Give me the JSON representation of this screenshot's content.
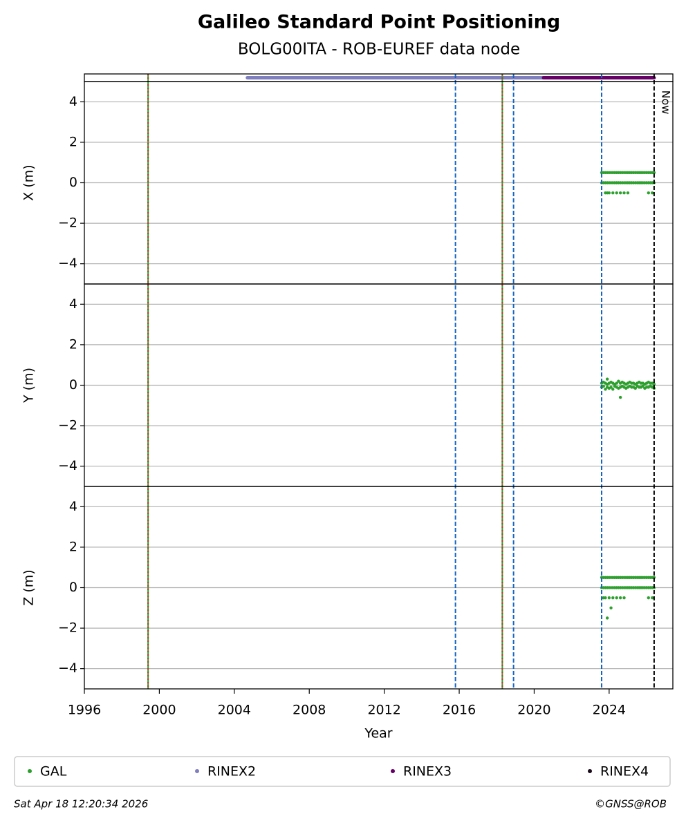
{
  "chart_data": [
    {
      "type": "timeline",
      "title": "Galileo Standard Point Positioning",
      "subtitle": "BOLG00ITA - ROB-EUREF data node",
      "xlim": [
        1996,
        2027.4
      ],
      "series": [
        {
          "name": "RINEX2",
          "color": "#7f7fbf",
          "values": [
            [
              2004.7,
              2020.5
            ]
          ]
        },
        {
          "name": "RINEX3",
          "color": "#660066",
          "values": [
            [
              2020.5,
              2026.4
            ]
          ]
        },
        {
          "name": "RINEX4",
          "color": "#1a0a1a",
          "values": []
        }
      ],
      "events": [
        {
          "value": 1999.4,
          "colors": [
            "#2ca02c",
            "#d62728"
          ]
        },
        {
          "value": 2018.3,
          "colors": [
            "#2ca02c",
            "#d62728"
          ]
        },
        {
          "value": 2015.8,
          "colors": [
            "#1565c0"
          ]
        },
        {
          "value": 2018.9,
          "colors": [
            "#1565c0"
          ]
        },
        {
          "value": 2023.6,
          "colors": [
            "#1565c0"
          ]
        }
      ],
      "annotations": [
        {
          "value": 2026.4,
          "label": "Now",
          "color": "#000000"
        }
      ],
      "legend": "bottom"
    },
    {
      "type": "scatter",
      "ylabel": "X (m)",
      "xlim": [
        1996,
        2027.4
      ],
      "ylim": [
        -5,
        5
      ],
      "yticks": [
        {
          "value": -4,
          "label": "−4"
        },
        {
          "value": -2,
          "label": "−2"
        },
        0,
        2,
        4
      ],
      "grid": true,
      "series": [
        {
          "name": "GAL",
          "color": "#2ca02c",
          "x": [
            2023.6,
            2023.7,
            2023.8,
            2023.9,
            2024.0,
            2024.1,
            2024.2,
            2024.3,
            2024.4,
            2024.5,
            2024.6,
            2024.7,
            2024.8,
            2024.9,
            2025.0,
            2025.1,
            2025.2,
            2025.3,
            2025.4,
            2025.5,
            2025.6,
            2025.7,
            2025.8,
            2025.9,
            2026.0,
            2026.1,
            2026.2,
            2026.3,
            2026.4,
            2023.6,
            2023.7,
            2023.8,
            2023.9,
            2024.0,
            2024.1,
            2024.2,
            2024.3,
            2024.4,
            2024.5,
            2024.6,
            2024.7,
            2024.8,
            2024.9,
            2025.0,
            2025.1,
            2025.2,
            2025.3,
            2025.4,
            2025.5,
            2025.6,
            2025.7,
            2025.8,
            2025.9,
            2026.0,
            2026.1,
            2026.2,
            2026.3,
            2026.4,
            2023.8,
            2023.9,
            2024.0,
            2024.2,
            2024.4,
            2024.6,
            2024.8,
            2025.0,
            2026.1,
            2026.3
          ],
          "values": [
            0.5,
            0.5,
            0.5,
            0.5,
            0.5,
            0.5,
            0.5,
            0.5,
            0.5,
            0.5,
            0.5,
            0.5,
            0.5,
            0.5,
            0.5,
            0.5,
            0.5,
            0.5,
            0.5,
            0.5,
            0.5,
            0.5,
            0.5,
            0.5,
            0.5,
            0.5,
            0.5,
            0.5,
            0.5,
            0,
            0,
            0,
            0,
            0,
            0,
            0,
            0,
            0,
            0,
            0,
            0,
            0,
            0,
            0,
            0,
            0,
            0,
            0,
            0,
            0,
            0,
            0,
            0,
            0,
            0,
            0,
            0,
            0,
            -0.5,
            -0.5,
            -0.5,
            -0.5,
            -0.5,
            -0.5,
            -0.5,
            -0.5,
            -0.5,
            -0.5
          ]
        }
      ]
    },
    {
      "type": "scatter",
      "ylabel": "Y (m)",
      "xlim": [
        1996,
        2027.4
      ],
      "ylim": [
        -5,
        5
      ],
      "yticks": [
        {
          "value": -4,
          "label": "−4"
        },
        {
          "value": -2,
          "label": "−2"
        },
        0,
        2,
        4
      ],
      "grid": true,
      "series": [
        {
          "name": "GAL",
          "color": "#2ca02c",
          "x": [
            2023.6,
            2023.7,
            2023.8,
            2023.9,
            2024.0,
            2024.1,
            2024.2,
            2024.3,
            2024.4,
            2024.5,
            2024.6,
            2024.7,
            2024.8,
            2024.9,
            2025.0,
            2025.1,
            2025.2,
            2025.3,
            2025.4,
            2025.5,
            2025.6,
            2025.7,
            2025.8,
            2025.9,
            2026.0,
            2026.1,
            2026.2,
            2026.3,
            2026.4,
            2023.6,
            2023.7,
            2023.8,
            2023.9,
            2024.0,
            2024.1,
            2024.2,
            2024.3,
            2024.4,
            2024.5,
            2024.6,
            2024.7,
            2024.8,
            2024.9,
            2025.0,
            2025.1,
            2025.2,
            2025.3,
            2025.4,
            2025.5,
            2025.6,
            2025.7,
            2025.8,
            2025.9,
            2026.0,
            2026.1,
            2026.2,
            2026.3,
            2026.4,
            2023.9,
            2024.6
          ],
          "values": [
            0.1,
            0.15,
            0.1,
            0.05,
            0.1,
            0.15,
            0.1,
            0.05,
            0.1,
            0.2,
            0.1,
            0.15,
            0.1,
            0.05,
            0.1,
            0.15,
            0.1,
            0.1,
            0.05,
            0.1,
            0.15,
            0.1,
            0.1,
            0.05,
            0.1,
            0.15,
            0.1,
            0.1,
            0.05,
            -0.1,
            -0.05,
            -0.2,
            -0.1,
            -0.15,
            -0.1,
            -0.2,
            -0.05,
            -0.1,
            -0.15,
            -0.1,
            -0.05,
            -0.1,
            -0.15,
            -0.1,
            -0.05,
            -0.1,
            -0.1,
            -0.15,
            -0.05,
            -0.1,
            -0.1,
            -0.05,
            -0.15,
            -0.1,
            -0.1,
            -0.05,
            -0.1,
            -0.15,
            0.3,
            -0.6
          ]
        }
      ]
    },
    {
      "type": "scatter",
      "ylabel": "Z (m)",
      "xlabel": "Year",
      "xlim": [
        1996,
        2027.4
      ],
      "ylim": [
        -5,
        5
      ],
      "xticks": [
        1996,
        2000,
        2004,
        2008,
        2012,
        2016,
        2020,
        2024
      ],
      "yticks": [
        {
          "value": -4,
          "label": "−4"
        },
        {
          "value": -2,
          "label": "−2"
        },
        0,
        2,
        4
      ],
      "grid": true,
      "series": [
        {
          "name": "GAL",
          "color": "#2ca02c",
          "x": [
            2023.6,
            2023.7,
            2023.8,
            2023.9,
            2024.0,
            2024.1,
            2024.2,
            2024.3,
            2024.4,
            2024.5,
            2024.6,
            2024.7,
            2024.8,
            2024.9,
            2025.0,
            2025.1,
            2025.2,
            2025.3,
            2025.4,
            2025.5,
            2025.6,
            2025.7,
            2025.8,
            2025.9,
            2026.0,
            2026.1,
            2026.2,
            2026.3,
            2026.4,
            2023.6,
            2023.7,
            2023.8,
            2023.9,
            2024.0,
            2024.1,
            2024.2,
            2024.3,
            2024.4,
            2024.5,
            2024.6,
            2024.7,
            2024.8,
            2024.9,
            2025.0,
            2025.1,
            2025.2,
            2025.3,
            2025.4,
            2025.5,
            2025.6,
            2025.7,
            2025.8,
            2025.9,
            2026.0,
            2026.1,
            2026.2,
            2026.3,
            2026.4,
            2023.7,
            2023.8,
            2024.0,
            2024.2,
            2024.4,
            2024.6,
            2024.8,
            2026.1,
            2026.3,
            2024.1,
            2023.9
          ],
          "values": [
            0.5,
            0.5,
            0.5,
            0.5,
            0.5,
            0.5,
            0.5,
            0.5,
            0.5,
            0.5,
            0.5,
            0.5,
            0.5,
            0.5,
            0.5,
            0.5,
            0.5,
            0.5,
            0.5,
            0.5,
            0.5,
            0.5,
            0.5,
            0.5,
            0.5,
            0.5,
            0.5,
            0.5,
            0.5,
            0,
            0,
            0,
            0,
            0,
            0,
            0,
            0,
            0,
            0,
            0,
            0,
            0,
            0,
            0,
            0,
            0,
            0,
            0,
            0,
            0,
            0,
            0,
            0,
            0,
            0,
            0,
            0,
            0,
            -0.5,
            -0.5,
            -0.5,
            -0.5,
            -0.5,
            -0.5,
            -0.5,
            -0.5,
            -0.5,
            -1.0,
            -1.5
          ]
        }
      ]
    }
  ],
  "footer": {
    "timestamp": "Sat Apr 18 12:20:34 2026",
    "credit": "©GNSS@ROB"
  }
}
